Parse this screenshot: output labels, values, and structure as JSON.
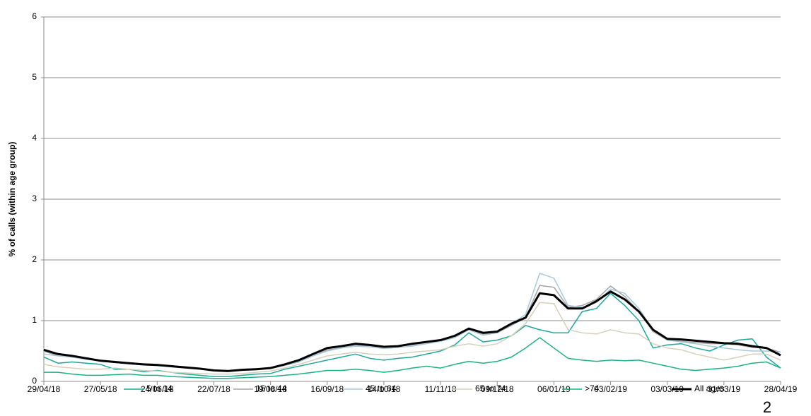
{
  "chart_data": {
    "type": "line",
    "y_label": "% of calls (within age group)",
    "x": [
      "29/04/18",
      "06/05/18",
      "13/05/18",
      "20/05/18",
      "27/05/18",
      "03/06/18",
      "10/06/18",
      "17/06/18",
      "24/06/18",
      "01/07/18",
      "08/07/18",
      "15/07/18",
      "22/07/18",
      "29/07/18",
      "05/08/18",
      "12/08/18",
      "19/08/18",
      "26/08/18",
      "02/09/18",
      "09/09/18",
      "16/09/18",
      "23/09/18",
      "30/09/18",
      "07/10/18",
      "14/10/18",
      "21/10/18",
      "28/10/18",
      "04/11/18",
      "11/11/18",
      "18/11/18",
      "25/11/18",
      "02/12/18",
      "09/12/18",
      "16/12/18",
      "23/12/18",
      "30/12/18",
      "06/01/19",
      "13/01/19",
      "20/01/19",
      "27/01/19",
      "03/02/19",
      "10/02/19",
      "17/02/19",
      "24/02/19",
      "03/03/19",
      "10/03/19",
      "17/03/19",
      "24/03/19",
      "31/03/19",
      "07/04/19",
      "14/04/19",
      "21/04/19",
      "28/04/19"
    ],
    "xlim": [
      "29/04/18",
      "28/04/19"
    ],
    "xticks": [
      "29/04/18",
      "27/05/18",
      "24/06/18",
      "22/07/18",
      "19/08/18",
      "16/09/18",
      "14/10/18",
      "11/11/18",
      "09/12/18",
      "06/01/19",
      "03/02/19",
      "03/03/19",
      "31/03/19",
      "28/04/19"
    ],
    "ylim": [
      0,
      6
    ],
    "yticks": [
      0,
      1,
      2,
      3,
      4,
      5,
      6
    ],
    "grid": true,
    "series": [
      {
        "name": "5 to 14",
        "color": "#1aa89a",
        "width": 1.5,
        "values": [
          0.4,
          0.3,
          0.32,
          0.3,
          0.28,
          0.2,
          0.2,
          0.16,
          0.18,
          0.15,
          0.12,
          0.1,
          0.08,
          0.08,
          0.1,
          0.12,
          0.13,
          0.2,
          0.25,
          0.3,
          0.35,
          0.4,
          0.45,
          0.38,
          0.35,
          0.38,
          0.4,
          0.45,
          0.5,
          0.6,
          0.8,
          0.65,
          0.68,
          0.75,
          0.92,
          0.85,
          0.8,
          0.8,
          1.15,
          1.2,
          1.45,
          1.25,
          1.0,
          0.55,
          0.6,
          0.62,
          0.55,
          0.5,
          0.6,
          0.68,
          0.7,
          0.4,
          0.22
        ]
      },
      {
        "name": "15 to 44",
        "color": "#a6a6a6",
        "width": 1.5,
        "values": [
          0.5,
          0.42,
          0.4,
          0.37,
          0.35,
          0.33,
          0.31,
          0.29,
          0.28,
          0.26,
          0.24,
          0.22,
          0.19,
          0.18,
          0.2,
          0.21,
          0.22,
          0.27,
          0.33,
          0.42,
          0.52,
          0.55,
          0.6,
          0.58,
          0.56,
          0.58,
          0.6,
          0.64,
          0.68,
          0.76,
          0.85,
          0.78,
          0.8,
          0.92,
          1.05,
          1.58,
          1.55,
          1.22,
          1.25,
          1.35,
          1.57,
          1.4,
          1.15,
          0.82,
          0.68,
          0.66,
          0.64,
          0.62,
          0.62,
          0.6,
          0.56,
          0.55,
          0.48
        ]
      },
      {
        "name": "45 to 64",
        "color": "#a9c8dc",
        "width": 1.5,
        "values": [
          0.45,
          0.42,
          0.4,
          0.36,
          0.34,
          0.31,
          0.29,
          0.27,
          0.26,
          0.24,
          0.22,
          0.2,
          0.18,
          0.17,
          0.19,
          0.2,
          0.21,
          0.26,
          0.32,
          0.42,
          0.5,
          0.55,
          0.58,
          0.57,
          0.54,
          0.56,
          0.58,
          0.62,
          0.66,
          0.72,
          0.85,
          0.76,
          0.8,
          0.95,
          1.1,
          1.78,
          1.7,
          1.25,
          1.22,
          1.3,
          1.52,
          1.45,
          1.2,
          0.85,
          0.68,
          0.65,
          0.62,
          0.58,
          0.55,
          0.52,
          0.5,
          0.5,
          0.48
        ]
      },
      {
        "name": "65 to 74",
        "color": "#d6d0b8",
        "width": 1.5,
        "values": [
          0.28,
          0.24,
          0.22,
          0.2,
          0.2,
          0.22,
          0.2,
          0.18,
          0.17,
          0.15,
          0.14,
          0.13,
          0.12,
          0.12,
          0.13,
          0.15,
          0.17,
          0.22,
          0.28,
          0.35,
          0.42,
          0.45,
          0.48,
          0.45,
          0.44,
          0.45,
          0.48,
          0.5,
          0.52,
          0.58,
          0.62,
          0.58,
          0.62,
          0.75,
          0.95,
          1.3,
          1.28,
          0.85,
          0.8,
          0.78,
          0.85,
          0.8,
          0.78,
          0.62,
          0.55,
          0.52,
          0.45,
          0.4,
          0.35,
          0.4,
          0.45,
          0.45,
          0.35
        ]
      },
      {
        "name": ">74",
        "color": "#17b386",
        "width": 1.5,
        "values": [
          0.15,
          0.15,
          0.12,
          0.1,
          0.1,
          0.11,
          0.12,
          0.1,
          0.1,
          0.08,
          0.07,
          0.06,
          0.05,
          0.05,
          0.06,
          0.07,
          0.08,
          0.1,
          0.12,
          0.15,
          0.18,
          0.18,
          0.2,
          0.18,
          0.15,
          0.18,
          0.22,
          0.25,
          0.22,
          0.28,
          0.33,
          0.3,
          0.33,
          0.4,
          0.55,
          0.72,
          0.55,
          0.38,
          0.35,
          0.33,
          0.35,
          0.34,
          0.35,
          0.3,
          0.25,
          0.2,
          0.18,
          0.2,
          0.22,
          0.25,
          0.3,
          0.32,
          0.22
        ]
      },
      {
        "name": "All ages",
        "color": "#000000",
        "width": 3,
        "values": [
          0.52,
          0.45,
          0.42,
          0.38,
          0.34,
          0.32,
          0.3,
          0.28,
          0.27,
          0.25,
          0.23,
          0.21,
          0.18,
          0.17,
          0.19,
          0.2,
          0.22,
          0.28,
          0.35,
          0.45,
          0.55,
          0.58,
          0.62,
          0.6,
          0.57,
          0.58,
          0.62,
          0.65,
          0.68,
          0.75,
          0.87,
          0.8,
          0.82,
          0.95,
          1.05,
          1.45,
          1.42,
          1.2,
          1.2,
          1.32,
          1.48,
          1.35,
          1.15,
          0.85,
          0.7,
          0.69,
          0.67,
          0.65,
          0.63,
          0.62,
          0.58,
          0.55,
          0.43
        ]
      }
    ]
  },
  "page_number": "2"
}
